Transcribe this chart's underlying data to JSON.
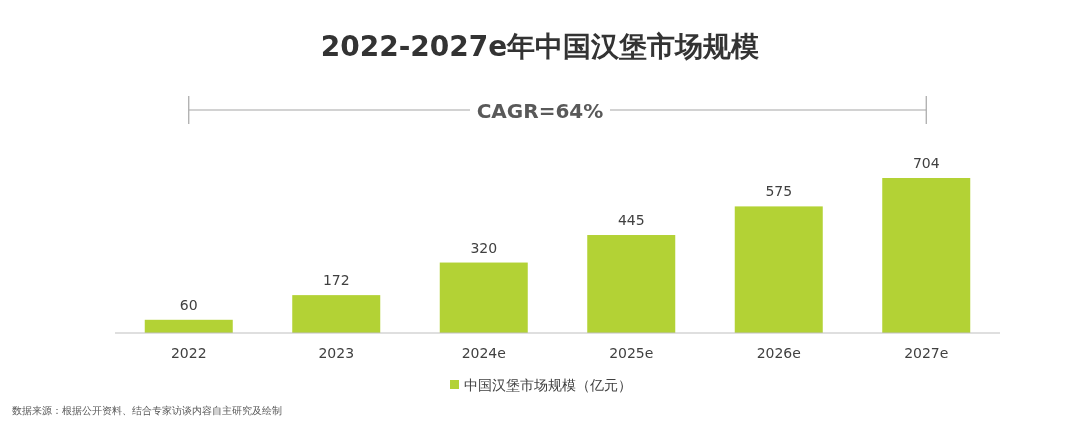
{
  "chart_data": {
    "type": "bar",
    "title": "2022-2027e年中国汉堡市场规模",
    "categories": [
      "2022",
      "2023",
      "2024e",
      "2025e",
      "2026e",
      "2027e"
    ],
    "series": [
      {
        "name": "中国汉堡市场规模（亿元）",
        "color": "#b3d235",
        "values": [
          60,
          172,
          320,
          445,
          575,
          704
        ]
      }
    ],
    "data_labels": true,
    "legend": "bottom",
    "annotations": [
      "CAGR=64%",
      "数据来源：根据公开资料、结合专家访谈内容自主研究及绘制"
    ]
  }
}
